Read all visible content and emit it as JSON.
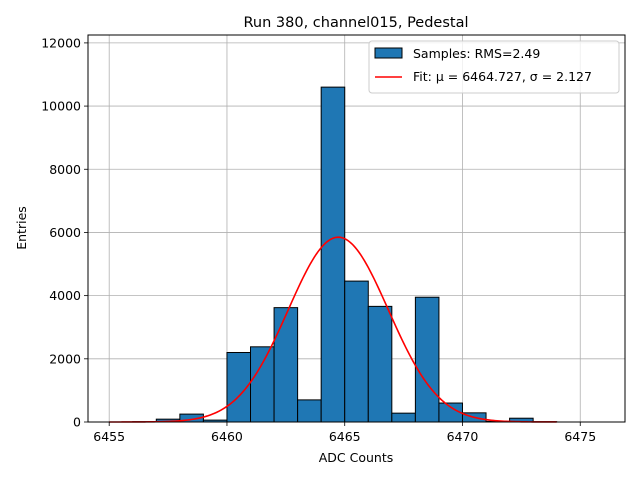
{
  "chart_data": {
    "type": "bar",
    "title": "Run 380, channel015, Pedestal",
    "xlabel": "ADC Counts",
    "ylabel": "Entries",
    "xlim": [
      6454.1,
      6476.9
    ],
    "ylim": [
      0,
      12250
    ],
    "grid": true,
    "bar_color": "#1f77b4",
    "fit_color": "#ff0000",
    "xticks": [
      6455,
      6460,
      6465,
      6470,
      6475
    ],
    "yticks": [
      0,
      2000,
      4000,
      6000,
      8000,
      10000,
      12000
    ],
    "bins": [
      {
        "x0": 6456,
        "x1": 6457,
        "value": 10
      },
      {
        "x0": 6457,
        "x1": 6458,
        "value": 90
      },
      {
        "x0": 6458,
        "x1": 6459,
        "value": 250
      },
      {
        "x0": 6459,
        "x1": 6460,
        "value": 60
      },
      {
        "x0": 6460,
        "x1": 6461,
        "value": 2200
      },
      {
        "x0": 6461,
        "x1": 6462,
        "value": 2380
      },
      {
        "x0": 6462,
        "x1": 6463,
        "value": 3620
      },
      {
        "x0": 6463,
        "x1": 6464,
        "value": 700
      },
      {
        "x0": 6464,
        "x1": 6465,
        "value": 10600
      },
      {
        "x0": 6465,
        "x1": 6466,
        "value": 4460
      },
      {
        "x0": 6466,
        "x1": 6467,
        "value": 3660
      },
      {
        "x0": 6467,
        "x1": 6468,
        "value": 280
      },
      {
        "x0": 6468,
        "x1": 6469,
        "value": 3950
      },
      {
        "x0": 6469,
        "x1": 6470,
        "value": 600
      },
      {
        "x0": 6470,
        "x1": 6471,
        "value": 290
      },
      {
        "x0": 6471,
        "x1": 6472,
        "value": 20
      },
      {
        "x0": 6472,
        "x1": 6473,
        "value": 120
      },
      {
        "x0": 6473,
        "x1": 6474,
        "value": 10
      }
    ],
    "fit": {
      "mu": 6464.727,
      "sigma": 2.127,
      "amplitude": 5850,
      "x_range": [
        6455,
        6474
      ]
    },
    "legend": {
      "position": "top-right",
      "samples_label": "Samples: RMS=2.49",
      "fit_label": "Fit: μ = 6464.727, σ = 2.127"
    }
  }
}
